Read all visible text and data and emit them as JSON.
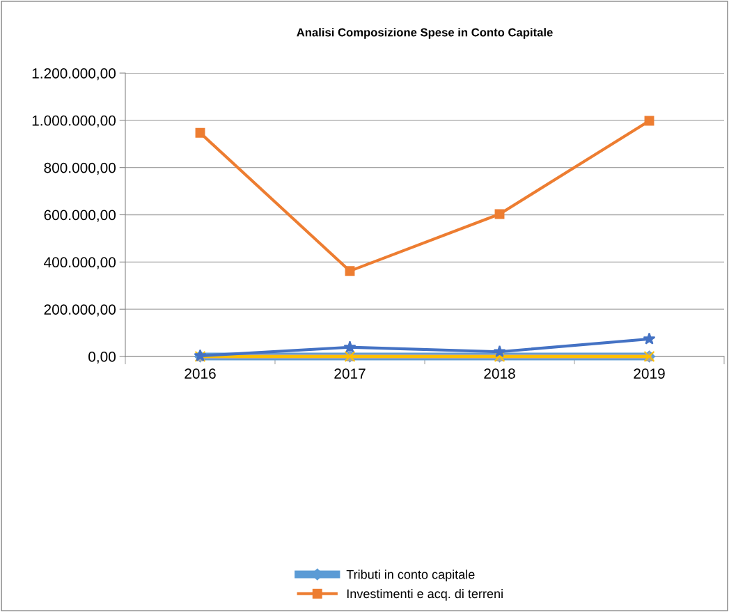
{
  "chart_data": {
    "type": "line",
    "title": "Analisi Composizione Spese in Conto Capitale",
    "categories": [
      "2016",
      "2017",
      "2018",
      "2019"
    ],
    "series": [
      {
        "name": "Tributi in conto capitale",
        "color": "#5b9bd5",
        "marker": "diamond",
        "values": [
          0,
          0,
          0,
          0
        ]
      },
      {
        "name": "Investimenti e acq. di terreni",
        "color": "#ed7d31",
        "marker": "square",
        "values": [
          947000,
          362000,
          603000,
          998000
        ]
      },
      {
        "color": "#a5a5a5",
        "marker": "triangle",
        "values": [
          0,
          0,
          0,
          0
        ]
      },
      {
        "color": "#ffc000",
        "marker": "cross",
        "values": [
          0,
          0,
          0,
          0
        ]
      },
      {
        "color": "#4472c4",
        "marker": "star",
        "values": [
          3000,
          39000,
          20000,
          74000
        ]
      }
    ],
    "ylim": [
      0,
      1200000
    ],
    "yticks": [
      {
        "value": 0,
        "label": "0,00"
      },
      {
        "value": 200000,
        "label": "200.000,00"
      },
      {
        "value": 400000,
        "label": "400.000,00"
      },
      {
        "value": 600000,
        "label": "600.000,00"
      },
      {
        "value": 800000,
        "label": "800.000,00"
      },
      {
        "value": 1000000,
        "label": "1.000.000,00"
      },
      {
        "value": 1200000,
        "label": "1.200.000,00"
      }
    ],
    "grid": "y",
    "legend": "bottom",
    "line_style": "solid"
  }
}
